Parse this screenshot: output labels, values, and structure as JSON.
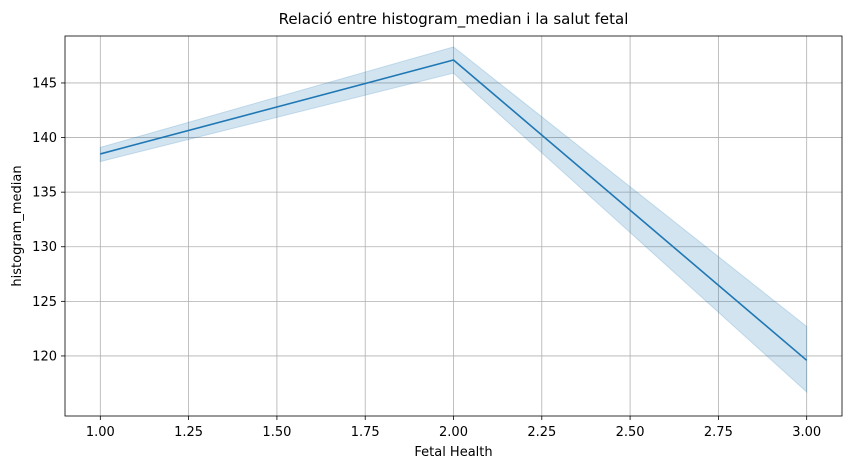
{
  "chart_data": {
    "type": "line",
    "title": "Relació entre histogram_median i la salut fetal",
    "xlabel": "Fetal Health",
    "ylabel": "histogram_median",
    "xlim": [
      0.9,
      3.1
    ],
    "ylim": [
      114.5,
      149.3
    ],
    "xticks": [
      1.0,
      1.25,
      1.5,
      1.75,
      2.0,
      2.25,
      2.5,
      2.75,
      3.0
    ],
    "xtick_labels": [
      "1.00",
      "1.25",
      "1.50",
      "1.75",
      "2.00",
      "2.25",
      "2.50",
      "2.75",
      "3.00"
    ],
    "yticks": [
      120,
      125,
      130,
      135,
      140,
      145
    ],
    "ytick_labels": [
      "120",
      "125",
      "130",
      "135",
      "140",
      "145"
    ],
    "grid": true,
    "series": [
      {
        "x": [
          1.0,
          2.0,
          3.0
        ],
        "values": [
          138.5,
          147.1,
          119.6
        ],
        "ci_lower": [
          137.8,
          145.9,
          116.7
        ],
        "ci_upper": [
          139.1,
          148.3,
          122.7
        ],
        "color": "#1f77b4",
        "ci_color": "#1f77b4"
      }
    ]
  }
}
